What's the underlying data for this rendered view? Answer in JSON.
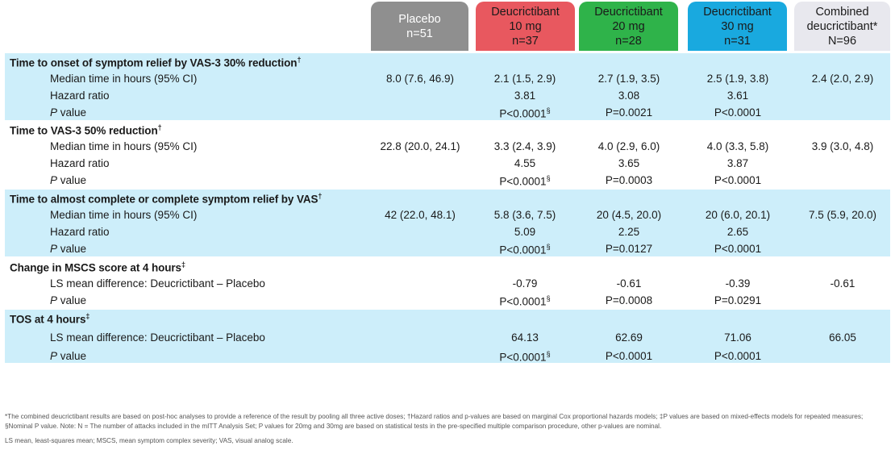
{
  "colors": {
    "placebo": "#8f8f8f",
    "dose10": "#e8585f",
    "dose20": "#2fb34a",
    "dose30": "#19a9df",
    "combined": "#e8e8ee",
    "band": "#cdeefa"
  },
  "headers": [
    {
      "line1": "Placebo",
      "line2": "n=51",
      "line3": ""
    },
    {
      "line1": "Deucrictibant",
      "line2": "10 mg",
      "line3": "n=37"
    },
    {
      "line1": "Deucrictibant",
      "line2": "20 mg",
      "line3": "n=28"
    },
    {
      "line1": "Deucrictibant",
      "line2": "30 mg",
      "line3": "n=31"
    },
    {
      "line1": "Combined",
      "line2": "deucrictibant*",
      "line3": "N=96"
    }
  ],
  "sections": [
    {
      "title": "Time to onset of symptom relief by VAS-3 30% reduction",
      "mark": "†",
      "rows": [
        {
          "label": "Median time in hours (95% CI)",
          "values": [
            "8.0 (7.6, 46.9)",
            "2.1 (1.5, 2.9)",
            "2.7 (1.9, 3.5)",
            "2.5 (1.9, 3.8)",
            "2.4 (2.0, 2.9)"
          ]
        },
        {
          "label": "Hazard ratio",
          "values": [
            "",
            "3.81",
            "3.08",
            "3.61",
            ""
          ]
        },
        {
          "label_p": "P",
          "label": " value",
          "values": [
            "",
            "P<0.0001",
            "P=0.0021",
            "P<0.0001",
            ""
          ],
          "marks": [
            "",
            "§",
            "",
            "",
            ""
          ]
        }
      ]
    },
    {
      "title": "Time to VAS-3 50% reduction",
      "mark": "†",
      "rows": [
        {
          "label": "Median time in hours (95% CI)",
          "values": [
            "22.8 (20.0, 24.1)",
            "3.3 (2.4, 3.9)",
            "4.0 (2.9, 6.0)",
            "4.0 (3.3, 5.8)",
            "3.9 (3.0, 4.8)"
          ]
        },
        {
          "label": "Hazard ratio",
          "values": [
            "",
            "4.55",
            "3.65",
            "3.87",
            ""
          ]
        },
        {
          "label_p": "P",
          "label": " value",
          "values": [
            "",
            "P<0.0001",
            "P=0.0003",
            "P<0.0001",
            ""
          ],
          "marks": [
            "",
            "§",
            "",
            "",
            ""
          ]
        }
      ]
    },
    {
      "title": "Time to almost complete or complete symptom relief by VAS",
      "mark": "†",
      "rows": [
        {
          "label": "Median time in hours (95% CI)",
          "values": [
            "42 (22.0, 48.1)",
            "5.8 (3.6, 7.5)",
            "20 (4.5, 20.0)",
            "20 (6.0, 20.1)",
            "7.5 (5.9, 20.0)"
          ]
        },
        {
          "label": "Hazard ratio",
          "values": [
            "",
            "5.09",
            "2.25",
            "2.65",
            ""
          ]
        },
        {
          "label_p": "P",
          "label": " value",
          "values": [
            "",
            "P<0.0001",
            "P=0.0127",
            "P<0.0001",
            ""
          ],
          "marks": [
            "",
            "§",
            "",
            "",
            ""
          ]
        }
      ]
    },
    {
      "title": "Change in MSCS score at 4 hours",
      "mark": "‡",
      "rows": [
        {
          "label": "LS mean difference: Deucrictibant – Placebo",
          "values": [
            "",
            "-0.79",
            "-0.61",
            "-0.39",
            "-0.61"
          ]
        },
        {
          "label_p": "P",
          "label": " value",
          "values": [
            "",
            "P<0.0001",
            "P=0.0008",
            "P=0.0291",
            ""
          ],
          "marks": [
            "",
            "§",
            "",
            "",
            ""
          ]
        }
      ]
    },
    {
      "title": "TOS at 4 hours",
      "mark": "‡",
      "rows": [
        {
          "label": "LS mean difference: Deucrictibant – Placebo",
          "values": [
            "",
            "64.13",
            "62.69",
            "71.06",
            "66.05"
          ]
        },
        {
          "label_p": "P",
          "label": " value",
          "values": [
            "",
            "P<0.0001",
            "P<0.0001",
            "P<0.0001",
            ""
          ],
          "marks": [
            "",
            "§",
            "",
            "",
            ""
          ]
        }
      ]
    }
  ],
  "footnotes": [
    "*The combined deucrictibant results are based on post-hoc analyses to provide a reference of the result by pooling all three active doses; †Hazard ratios and p-values are based on marginal Cox proportional hazards models; ‡P values are based on mixed-effects models for repeated measures; §Nominal P value. Note: N = The number of attacks included in the mITT Analysis Set; P values for 20mg and 30mg are based on statistical tests in the pre-specified multiple comparison procedure, other p-values are nominal.",
    "LS mean, least-squares mean; MSCS, mean symptom complex severity; VAS, visual analog scale."
  ]
}
